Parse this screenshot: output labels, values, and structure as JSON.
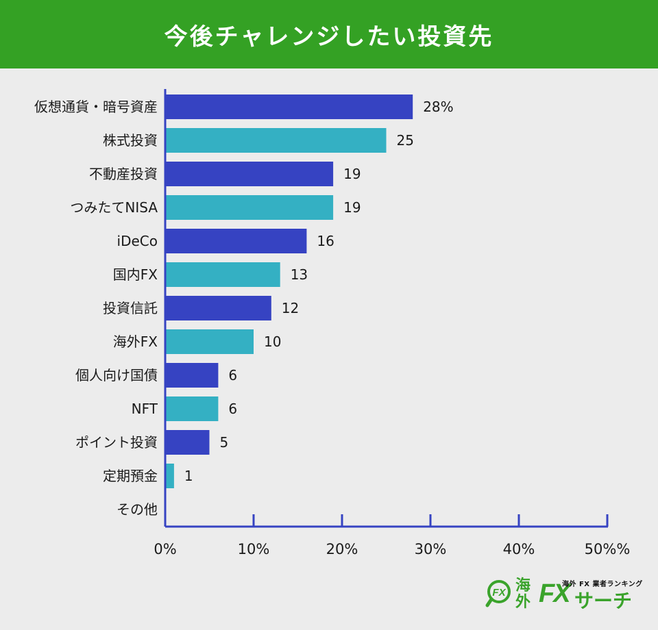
{
  "header": {
    "title": "今後チャレンジしたい投資先"
  },
  "colors": {
    "header_bg": "#34a124",
    "bar_primary": "#3643c2",
    "bar_secondary": "#34b0c3",
    "axis": "#3643c2",
    "logo_green": "#3aa32b"
  },
  "chart_data": {
    "type": "bar",
    "orientation": "horizontal",
    "categories": [
      "仮想通貨・暗号資産",
      "株式投資",
      "不動産投資",
      "つみたてNISA",
      "iDeCo",
      "国内FX",
      "投資信託",
      "海外FX",
      "個人向け国債",
      "NFT",
      "ポイント投資",
      "定期預金",
      "その他"
    ],
    "values": [
      28,
      25,
      19,
      19,
      16,
      13,
      12,
      10,
      6,
      6,
      5,
      1,
      0
    ],
    "value_labels": [
      "28%",
      "25",
      "19",
      "19",
      "16",
      "13",
      "12",
      "10",
      "6",
      "6",
      "5",
      "1",
      ""
    ],
    "xlim": [
      0,
      50
    ],
    "xticks": [
      0,
      10,
      20,
      30,
      40,
      50
    ],
    "xtick_labels": [
      "0%",
      "10%",
      "20%",
      "30%",
      "40%",
      "50%%"
    ],
    "title": "今後チャレンジしたい投資先",
    "xlabel": "",
    "ylabel": ""
  },
  "logo": {
    "mark": "FX",
    "kaigai": "海外",
    "fx": "FX",
    "search": "サーチ",
    "ranking": "海外 FX 業者ランキング"
  }
}
